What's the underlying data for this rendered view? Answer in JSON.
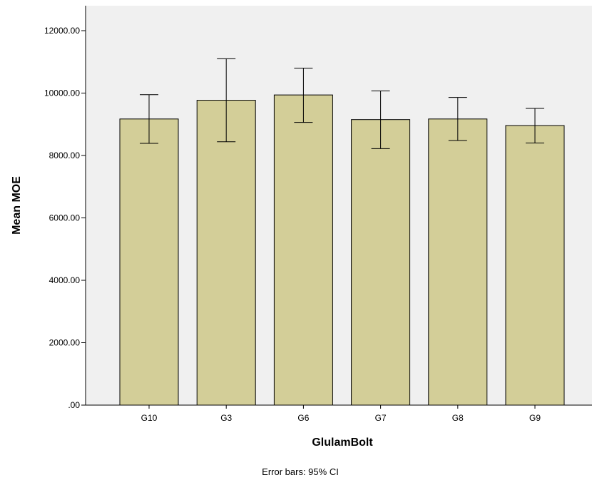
{
  "chart_data": {
    "type": "bar",
    "title": "",
    "xlabel": "GlulamBolt",
    "ylabel": "Mean MOE",
    "note": "Error bars: 95% CI",
    "categories": [
      "G10",
      "G3",
      "G6",
      "G7",
      "G8",
      "G9"
    ],
    "series": [
      {
        "values": [
          9170,
          9770,
          9940,
          9150,
          9170,
          8960
        ],
        "ci_lower": [
          8390,
          8440,
          9060,
          8220,
          8480,
          8400
        ],
        "ci_upper": [
          9950,
          11100,
          10800,
          10070,
          9860,
          9510
        ]
      }
    ],
    "ylim": [
      0,
      12800
    ],
    "yticks": [
      0,
      2000,
      4000,
      6000,
      8000,
      10000,
      12000
    ],
    "ytick_labels": [
      ".00",
      "2000.00",
      "4000.00",
      "6000.00",
      "8000.00",
      "10000.00",
      "12000.00"
    ],
    "grid": false,
    "colors": {
      "plot_background": "#f0f0f0",
      "bar_fill": "#d3ce98",
      "bar_stroke": "#000000",
      "error_bar": "#000000"
    }
  }
}
